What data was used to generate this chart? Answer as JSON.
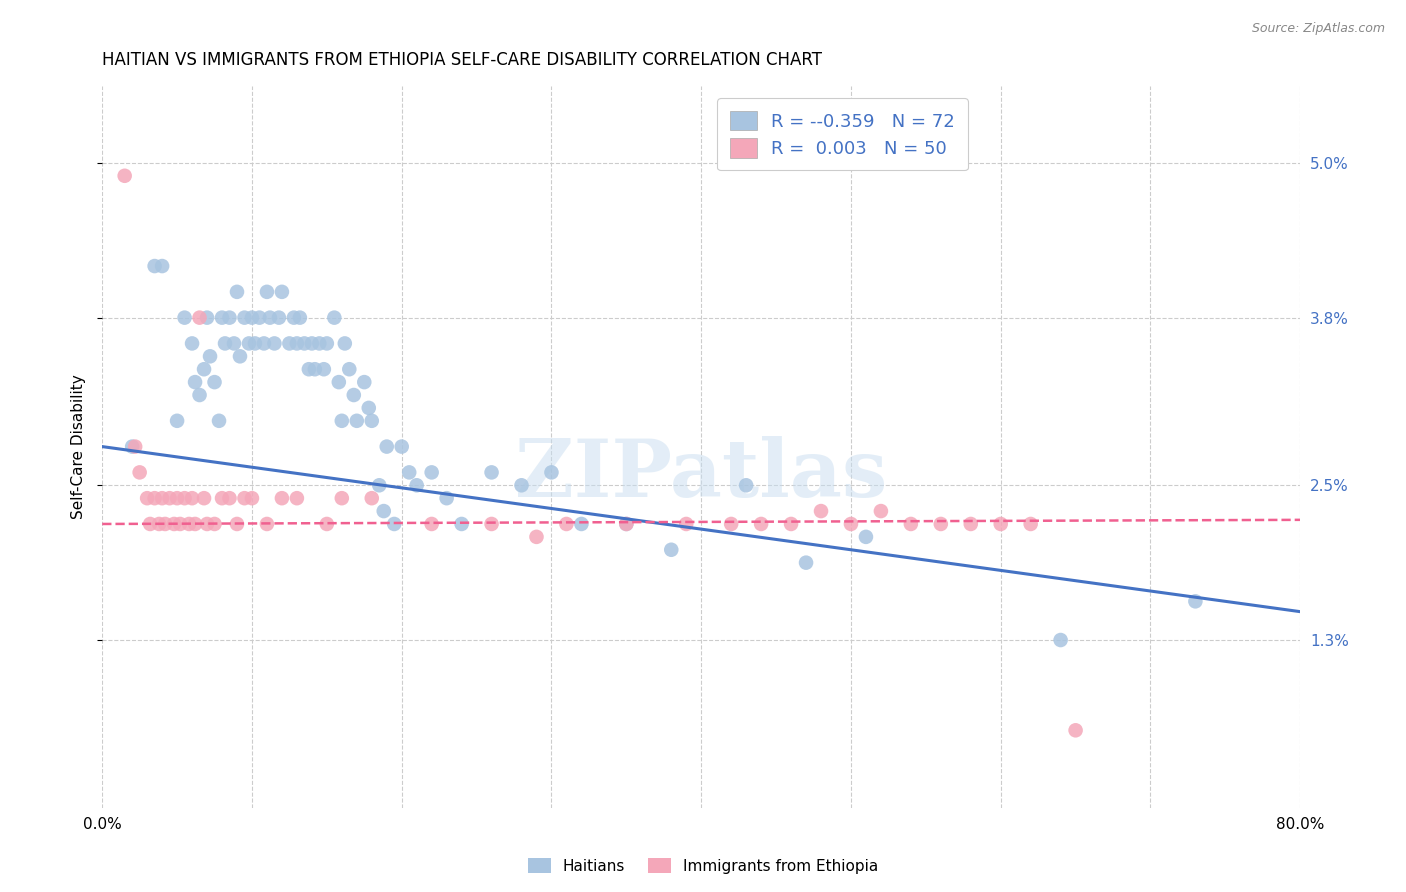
{
  "title": "HAITIAN VS IMMIGRANTS FROM ETHIOPIA SELF-CARE DISABILITY CORRELATION CHART",
  "source": "Source: ZipAtlas.com",
  "ylabel": "Self-Care Disability",
  "watermark": "ZIPatlas",
  "legend_R_haitian": "-0.359",
  "legend_N_haitian": "72",
  "legend_R_ethiopia": "0.003",
  "legend_N_ethiopia": "50",
  "haitian_color": "#a8c4e0",
  "ethiopia_color": "#f4a7b9",
  "haitian_line_color": "#4472c4",
  "ethiopia_line_color": "#f06090",
  "background_color": "#ffffff",
  "grid_color": "#cccccc",
  "right_axis_color": "#4472c4",
  "xlim": [
    0.0,
    0.8
  ],
  "ylim": [
    0.0,
    0.056
  ],
  "haitian_scatter_x": [
    0.02,
    0.035,
    0.04,
    0.05,
    0.055,
    0.06,
    0.062,
    0.065,
    0.068,
    0.07,
    0.072,
    0.075,
    0.078,
    0.08,
    0.082,
    0.085,
    0.088,
    0.09,
    0.092,
    0.095,
    0.098,
    0.1,
    0.102,
    0.105,
    0.108,
    0.11,
    0.112,
    0.115,
    0.118,
    0.12,
    0.125,
    0.128,
    0.13,
    0.132,
    0.135,
    0.138,
    0.14,
    0.142,
    0.145,
    0.148,
    0.15,
    0.155,
    0.158,
    0.16,
    0.162,
    0.165,
    0.168,
    0.17,
    0.175,
    0.178,
    0.18,
    0.185,
    0.188,
    0.19,
    0.195,
    0.2,
    0.205,
    0.21,
    0.22,
    0.23,
    0.24,
    0.26,
    0.28,
    0.3,
    0.32,
    0.35,
    0.38,
    0.43,
    0.47,
    0.51,
    0.64,
    0.73
  ],
  "haitian_scatter_y": [
    0.028,
    0.042,
    0.042,
    0.03,
    0.038,
    0.036,
    0.033,
    0.032,
    0.034,
    0.038,
    0.035,
    0.033,
    0.03,
    0.038,
    0.036,
    0.038,
    0.036,
    0.04,
    0.035,
    0.038,
    0.036,
    0.038,
    0.036,
    0.038,
    0.036,
    0.04,
    0.038,
    0.036,
    0.038,
    0.04,
    0.036,
    0.038,
    0.036,
    0.038,
    0.036,
    0.034,
    0.036,
    0.034,
    0.036,
    0.034,
    0.036,
    0.038,
    0.033,
    0.03,
    0.036,
    0.034,
    0.032,
    0.03,
    0.033,
    0.031,
    0.03,
    0.025,
    0.023,
    0.028,
    0.022,
    0.028,
    0.026,
    0.025,
    0.026,
    0.024,
    0.022,
    0.026,
    0.025,
    0.026,
    0.022,
    0.022,
    0.02,
    0.025,
    0.019,
    0.021,
    0.013,
    0.016
  ],
  "ethiopia_scatter_x": [
    0.015,
    0.022,
    0.025,
    0.03,
    0.032,
    0.035,
    0.038,
    0.04,
    0.042,
    0.045,
    0.048,
    0.05,
    0.052,
    0.055,
    0.058,
    0.06,
    0.062,
    0.065,
    0.068,
    0.07,
    0.075,
    0.08,
    0.085,
    0.09,
    0.095,
    0.1,
    0.11,
    0.12,
    0.13,
    0.15,
    0.16,
    0.18,
    0.22,
    0.26,
    0.29,
    0.31,
    0.35,
    0.39,
    0.42,
    0.44,
    0.46,
    0.48,
    0.5,
    0.52,
    0.54,
    0.56,
    0.58,
    0.6,
    0.62,
    0.65
  ],
  "ethiopia_scatter_y": [
    0.049,
    0.028,
    0.026,
    0.024,
    0.022,
    0.024,
    0.022,
    0.024,
    0.022,
    0.024,
    0.022,
    0.024,
    0.022,
    0.024,
    0.022,
    0.024,
    0.022,
    0.038,
    0.024,
    0.022,
    0.022,
    0.024,
    0.024,
    0.022,
    0.024,
    0.024,
    0.022,
    0.024,
    0.024,
    0.022,
    0.024,
    0.024,
    0.022,
    0.022,
    0.021,
    0.022,
    0.022,
    0.022,
    0.022,
    0.022,
    0.022,
    0.023,
    0.022,
    0.023,
    0.022,
    0.022,
    0.022,
    0.022,
    0.022,
    0.006
  ]
}
